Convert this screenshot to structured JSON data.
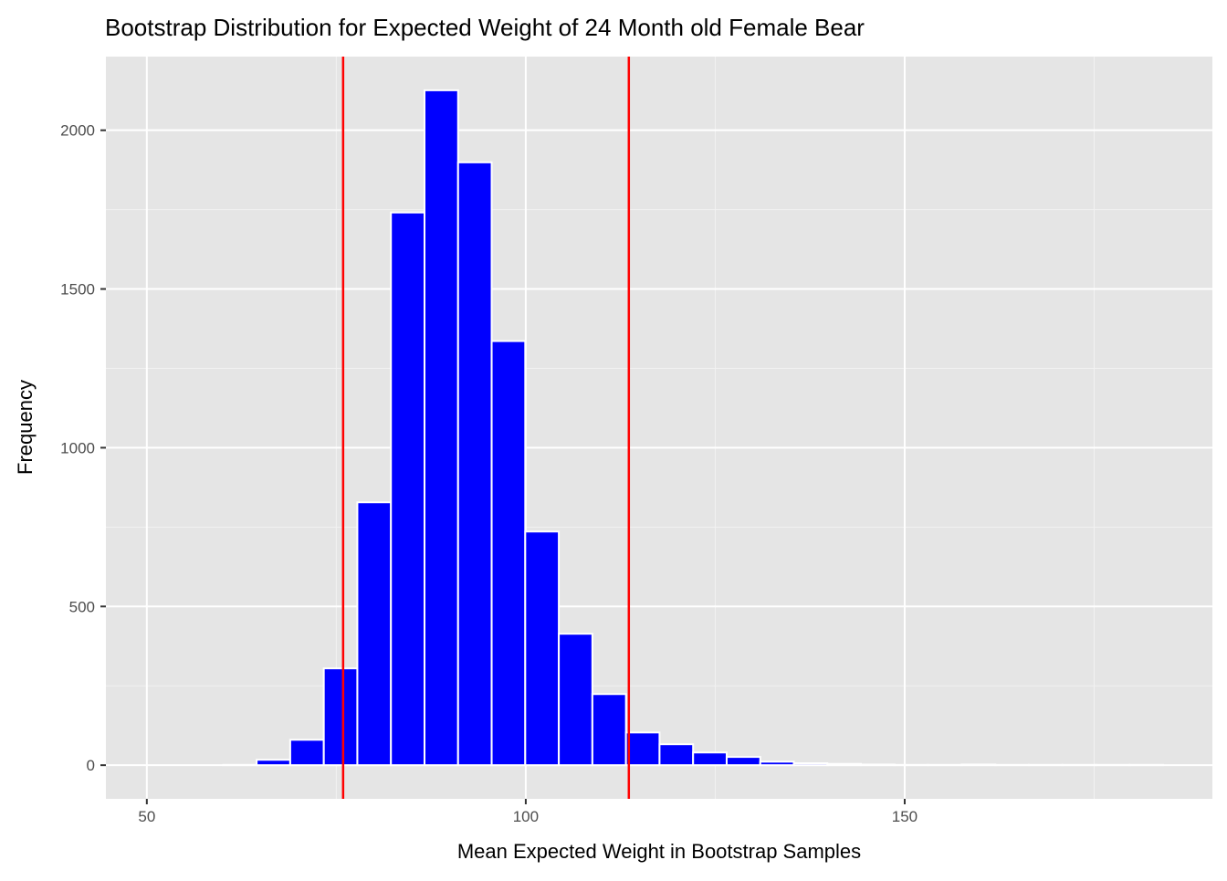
{
  "chart_data": {
    "type": "bar",
    "title": "Bootstrap Distribution for Expected Weight of 24 Month old Female Bear",
    "xlabel": "Mean Expected Weight in Bootstrap Samples",
    "ylabel": "Frequency",
    "xlim": [
      44.6,
      190.6
    ],
    "ylim": [
      -106,
      2232
    ],
    "x_ticks": [
      50,
      100,
      150
    ],
    "y_ticks": [
      0,
      500,
      1000,
      1500,
      2000
    ],
    "grid": true,
    "bin_width": 4.43,
    "bin_start": 51.2,
    "values": [
      0,
      0,
      1,
      17,
      80,
      305,
      828,
      1741,
      2126,
      1899,
      1336,
      736,
      414,
      224,
      103,
      66,
      40,
      26,
      11,
      6,
      4,
      2,
      1,
      1,
      2,
      1,
      1,
      1,
      1,
      1
    ],
    "vlines": [
      75.9,
      113.6
    ],
    "colors": {
      "fill": "#0000ff",
      "outline": "#ffffff",
      "vline": "#ff0000",
      "panel": "#e5e5e5"
    }
  }
}
